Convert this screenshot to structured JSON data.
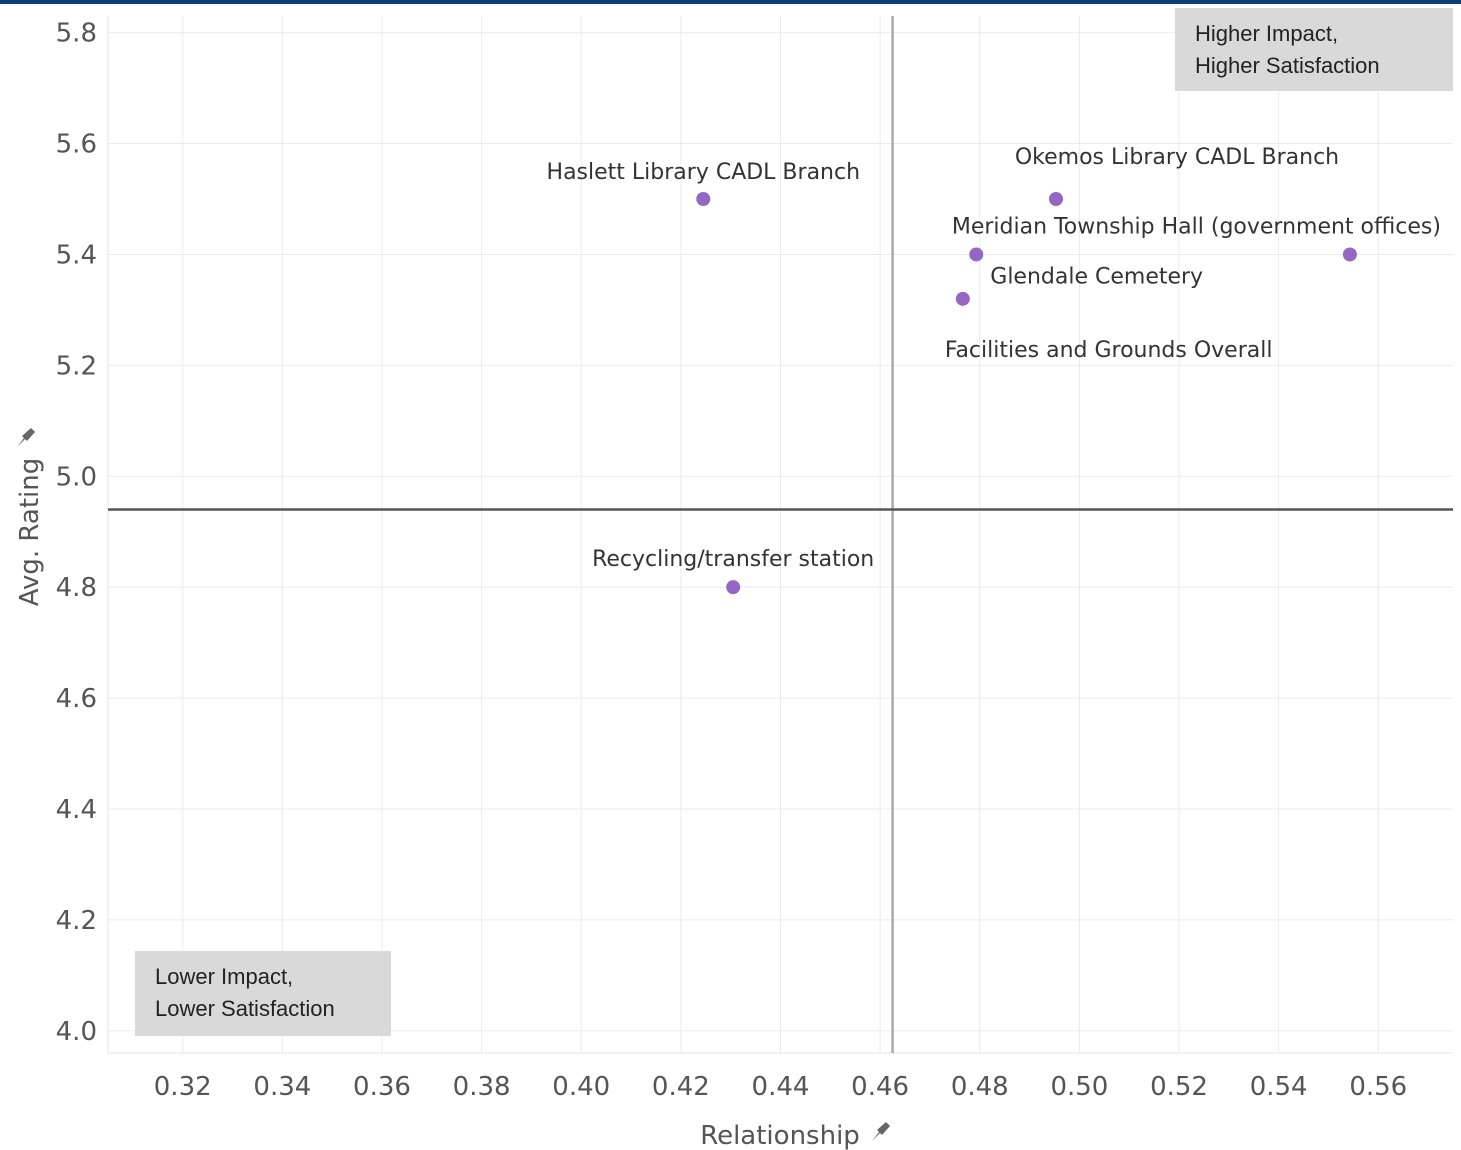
{
  "chart_data": {
    "type": "scatter",
    "title": "",
    "xlabel": "Relationship",
    "ylabel": "Avg. Rating",
    "xlim": [
      0.305,
      0.575
    ],
    "ylim": [
      3.96,
      5.83
    ],
    "xticks": [
      "0.32",
      "0.34",
      "0.36",
      "0.38",
      "0.40",
      "0.42",
      "0.44",
      "0.46",
      "0.48",
      "0.50",
      "0.52",
      "0.54",
      "0.56"
    ],
    "yticks": [
      "4.0",
      "4.2",
      "4.4",
      "4.6",
      "4.8",
      "5.0",
      "5.2",
      "5.4",
      "5.6",
      "5.8"
    ],
    "grid": true,
    "point_color": "#9467c5",
    "reference_lines": {
      "x": 0.4625,
      "y": 4.94
    },
    "points": [
      {
        "label": "Haslett Library CADL Branch",
        "x": 0.4245,
        "y": 5.5
      },
      {
        "label": "Okemos Library CADL Branch",
        "x": 0.4953,
        "y": 5.5
      },
      {
        "label": "Meridian Township Hall (government offices)",
        "x": 0.5543,
        "y": 5.4
      },
      {
        "label": "Glendale Cemetery",
        "x": 0.4793,
        "y": 5.4
      },
      {
        "label": "Facilities and Grounds Overall",
        "x": 0.4766,
        "y": 5.32
      },
      {
        "label": "Recycling/transfer station",
        "x": 0.4305,
        "y": 4.8
      }
    ]
  },
  "quadrants": {
    "top_right": {
      "line1": "Higher Impact,",
      "line2": "Higher Satisfaction"
    },
    "bottom_left": {
      "line1": "Lower Impact,",
      "line2": "Lower Satisfaction"
    }
  }
}
